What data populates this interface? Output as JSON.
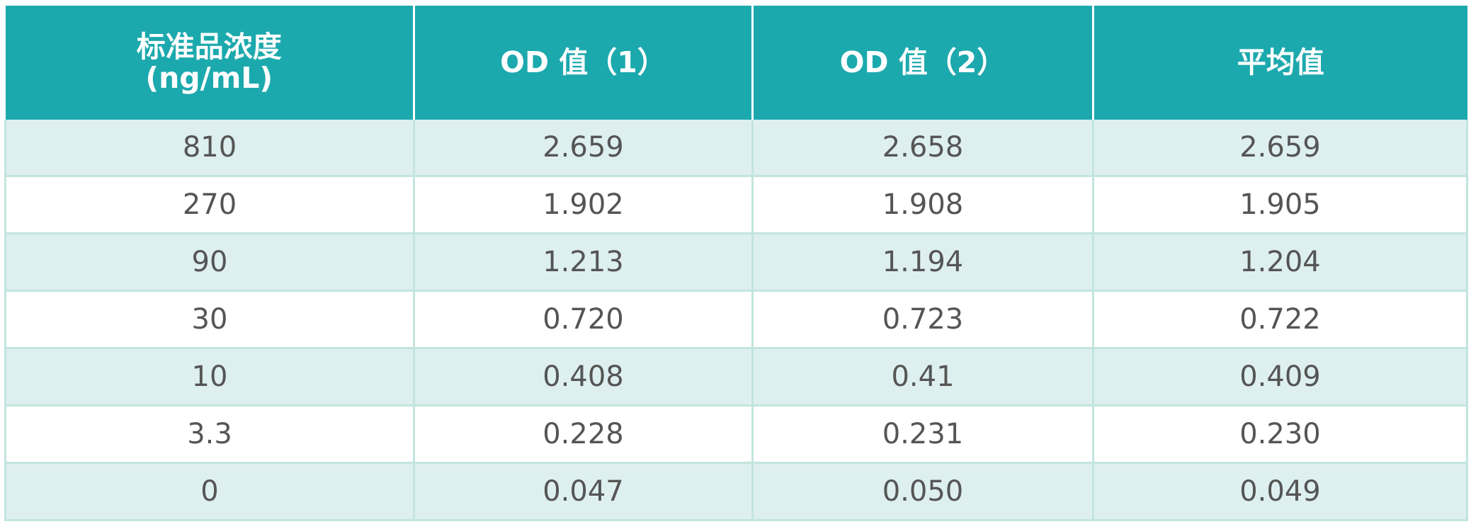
{
  "table": {
    "headers": [
      {
        "lines": [
          "标准品浓度",
          "(ng/mL)"
        ]
      },
      {
        "lines": [
          "OD 值（1）"
        ]
      },
      {
        "lines": [
          "OD 值（2）"
        ]
      },
      {
        "lines": [
          "平均值"
        ]
      }
    ],
    "rows": [
      [
        "810",
        "2.659",
        "2.658",
        "2.659"
      ],
      [
        "270",
        "1.902",
        "1.908",
        "1.905"
      ],
      [
        "90",
        "1.213",
        "1.194",
        "1.204"
      ],
      [
        "30",
        "0.720",
        "0.723",
        "0.722"
      ],
      [
        "10",
        "0.408",
        "0.41",
        "0.409"
      ],
      [
        "3.3",
        "0.228",
        "0.231",
        "0.230"
      ],
      [
        "0",
        "0.047",
        "0.050",
        "0.049"
      ]
    ]
  },
  "colors": {
    "header_bg": "#1ca9ad",
    "row_alt_bg": "#deeff0",
    "grid_line": "#c2e5de",
    "cell_text": "#555555"
  }
}
